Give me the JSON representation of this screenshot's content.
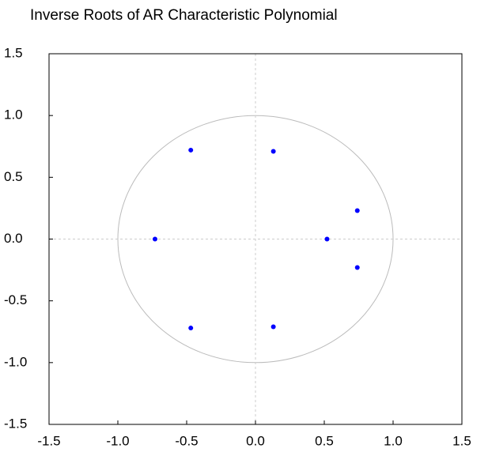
{
  "chart_data": {
    "type": "scatter",
    "title": "Inverse Roots of AR Characteristic Polynomial",
    "x": [
      -0.47,
      0.13,
      0.74,
      -0.73,
      0.52,
      0.74,
      -0.47,
      0.13
    ],
    "values": [
      0.72,
      0.71,
      0.23,
      0.0,
      0.0,
      -0.23,
      -0.72,
      -0.71
    ],
    "color": "#0000ff",
    "xlim": [
      -1.5,
      1.5
    ],
    "ylim": [
      -1.5,
      1.5
    ],
    "xticks": [
      {
        "value": -1.5,
        "label": "-1.5"
      },
      {
        "value": -1,
        "label": "-1.0"
      },
      {
        "value": -0.5,
        "label": "-0.5"
      },
      {
        "value": 0,
        "label": "0.0"
      },
      {
        "value": 0.5,
        "label": "0.5"
      },
      {
        "value": 1,
        "label": "1.0"
      },
      {
        "value": 1.5,
        "label": "1.5"
      }
    ],
    "yticks": [
      {
        "value": -1.5,
        "label": "-1.5"
      },
      {
        "value": -1,
        "label": "-1.0"
      },
      {
        "value": -0.5,
        "label": "-0.5"
      },
      {
        "value": 0,
        "label": "0.0"
      },
      {
        "value": 0.5,
        "label": "0.5"
      },
      {
        "value": 1,
        "label": "1.0"
      },
      {
        "value": 1.5,
        "label": "1.5"
      }
    ]
  }
}
